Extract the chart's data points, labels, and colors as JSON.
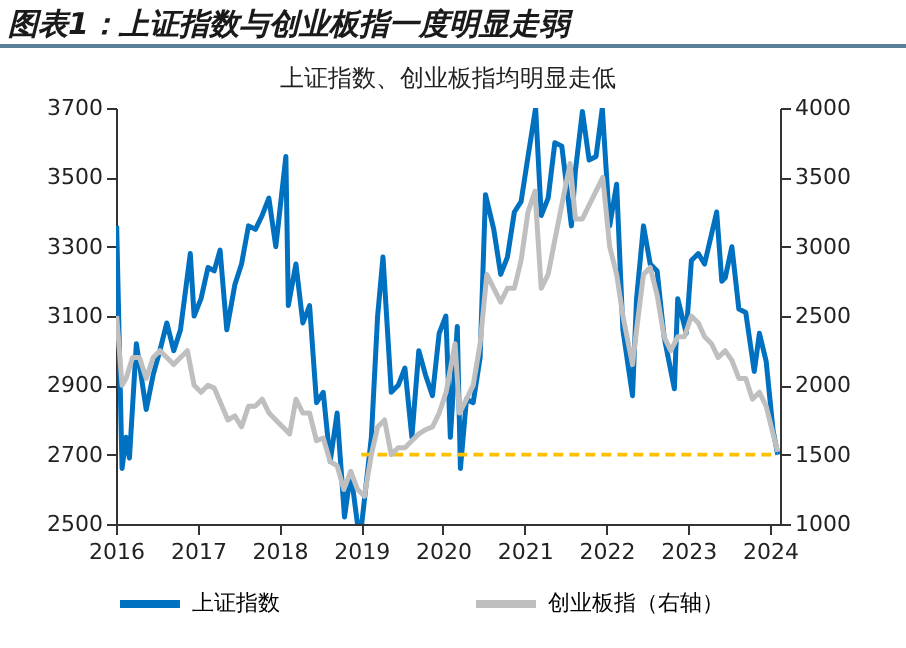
{
  "chart_data": {
    "type": "line",
    "title": "图表1：上证指数与创业板指一度明显走弱",
    "subtitle": "上证指数、创业板指均明显走低",
    "xlim": [
      "2016-01",
      "2024-02-15"
    ],
    "xticks": [
      "2016",
      "2017",
      "2018",
      "2019",
      "2020",
      "2021",
      "2022",
      "2023",
      "2024"
    ],
    "ylim": [
      2500,
      3700
    ],
    "yticks": [
      2500,
      2700,
      2900,
      3100,
      3300,
      3500,
      3700
    ],
    "y2lim": [
      1000,
      4000
    ],
    "y2ticks": [
      1000,
      1500,
      2000,
      2500,
      3000,
      3500,
      4000
    ],
    "grid": false,
    "legend": "bottom",
    "line_style": "solid",
    "series": [
      {
        "name": "上证指数",
        "color": "#0070c0",
        "x": [
          "2016-01-04",
          "2016-01-28",
          "2016-02-15",
          "2016-03-01",
          "2016-04-01",
          "2016-05-15",
          "2016-06-15",
          "2016-07-15",
          "2016-08-15",
          "2016-09-15",
          "2016-10-15",
          "2016-11-28",
          "2016-12-15",
          "2017-01-15",
          "2017-02-15",
          "2017-03-15",
          "2017-04-10",
          "2017-05-10",
          "2017-06-15",
          "2017-07-15",
          "2017-08-15",
          "2017-09-15",
          "2017-10-15",
          "2017-11-14",
          "2017-12-15",
          "2018-01-29",
          "2018-02-09",
          "2018-03-15",
          "2018-04-15",
          "2018-05-15",
          "2018-06-15",
          "2018-07-15",
          "2018-08-15",
          "2018-09-15",
          "2018-10-18",
          "2018-11-15",
          "2018-12-15",
          "2019-01-03",
          "2019-02-15",
          "2019-03-15",
          "2019-04-08",
          "2019-05-15",
          "2019-06-15",
          "2019-07-15",
          "2019-08-15",
          "2019-09-15",
          "2019-10-15",
          "2019-11-15",
          "2019-12-15",
          "2020-01-14",
          "2020-02-03",
          "2020-03-05",
          "2020-03-19",
          "2020-04-15",
          "2020-05-15",
          "2020-06-15",
          "2020-07-09",
          "2020-08-15",
          "2020-09-15",
          "2020-10-15",
          "2020-11-15",
          "2020-12-15",
          "2021-01-15",
          "2021-02-18",
          "2021-03-15",
          "2021-04-15",
          "2021-05-15",
          "2021-06-15",
          "2021-07-28",
          "2021-08-15",
          "2021-09-15",
          "2021-10-15",
          "2021-11-15",
          "2021-12-13",
          "2022-01-15",
          "2022-02-15",
          "2022-03-15",
          "2022-04-27",
          "2022-05-15",
          "2022-06-15",
          "2022-07-15",
          "2022-08-15",
          "2022-09-15",
          "2022-10-31",
          "2022-11-15",
          "2022-12-23",
          "2023-01-15",
          "2023-02-15",
          "2023-03-15",
          "2023-05-08",
          "2023-05-31",
          "2023-06-15",
          "2023-07-15",
          "2023-08-15",
          "2023-09-15",
          "2023-10-23",
          "2023-11-15",
          "2023-12-15",
          "2024-01-15",
          "2024-02-05"
        ],
        "values": [
          3360,
          2660,
          2750,
          2690,
          3020,
          2830,
          2930,
          3000,
          3080,
          3000,
          3060,
          3280,
          3100,
          3150,
          3240,
          3230,
          3290,
          3060,
          3190,
          3250,
          3360,
          3350,
          3390,
          3440,
          3300,
          3560,
          3130,
          3250,
          3080,
          3130,
          2850,
          2880,
          2680,
          2820,
          2520,
          2650,
          2500,
          2500,
          2750,
          3100,
          3270,
          2880,
          2900,
          2950,
          2750,
          3000,
          2930,
          2870,
          3050,
          3100,
          2750,
          3070,
          2660,
          2860,
          2850,
          2980,
          3450,
          3350,
          3220,
          3270,
          3400,
          3430,
          3560,
          3700,
          3390,
          3440,
          3600,
          3590,
          3360,
          3520,
          3690,
          3550,
          3560,
          3700,
          3360,
          3480,
          3060,
          2870,
          3150,
          3360,
          3250,
          3230,
          3040,
          2890,
          3150,
          3050,
          3260,
          3280,
          3250,
          3400,
          3200,
          3210,
          3300,
          3120,
          3110,
          2940,
          3050,
          2970,
          2770,
          2700
        ]
      },
      {
        "name": "创业板指（右轴）",
        "color": "#bfbfbf",
        "axis": "y2",
        "x": [
          "2016-01-04",
          "2016-01-28",
          "2016-02-15",
          "2016-03-15",
          "2016-04-15",
          "2016-05-15",
          "2016-06-15",
          "2016-07-15",
          "2016-08-15",
          "2016-09-15",
          "2016-10-15",
          "2016-11-15",
          "2016-12-15",
          "2017-01-15",
          "2017-02-15",
          "2017-03-15",
          "2017-05-15",
          "2017-06-15",
          "2017-07-15",
          "2017-08-15",
          "2017-09-15",
          "2017-10-15",
          "2017-11-15",
          "2017-12-15",
          "2018-01-15",
          "2018-02-15",
          "2018-03-15",
          "2018-04-15",
          "2018-05-15",
          "2018-06-15",
          "2018-07-15",
          "2018-08-15",
          "2018-09-15",
          "2018-10-15",
          "2018-11-15",
          "2018-12-15",
          "2019-01-15",
          "2019-02-15",
          "2019-03-15",
          "2019-04-15",
          "2019-05-15",
          "2019-06-15",
          "2019-07-15",
          "2019-08-15",
          "2019-09-15",
          "2019-10-15",
          "2019-11-15",
          "2019-12-15",
          "2020-01-15",
          "2020-02-24",
          "2020-03-15",
          "2020-04-15",
          "2020-05-15",
          "2020-06-15",
          "2020-07-15",
          "2020-08-15",
          "2020-09-15",
          "2020-10-15",
          "2020-11-15",
          "2020-12-15",
          "2021-01-15",
          "2021-02-15",
          "2021-03-15",
          "2021-04-15",
          "2021-05-15",
          "2021-06-15",
          "2021-07-22",
          "2021-08-15",
          "2021-09-15",
          "2021-10-15",
          "2021-11-15",
          "2021-12-15",
          "2022-01-15",
          "2022-02-15",
          "2022-03-15",
          "2022-04-27",
          "2022-05-15",
          "2022-06-15",
          "2022-07-15",
          "2022-08-15",
          "2022-09-15",
          "2022-10-15",
          "2022-11-15",
          "2022-12-15",
          "2023-01-15",
          "2023-02-15",
          "2023-03-15",
          "2023-04-15",
          "2023-05-15",
          "2023-06-15",
          "2023-07-15",
          "2023-08-15",
          "2023-09-15",
          "2023-10-15",
          "2023-11-15",
          "2023-12-15",
          "2024-01-15",
          "2024-02-05"
        ],
        "values": [
          2500,
          2000,
          2050,
          2200,
          2200,
          2050,
          2200,
          2250,
          2200,
          2150,
          2200,
          2250,
          2000,
          1950,
          2000,
          1980,
          1750,
          1780,
          1700,
          1850,
          1850,
          1900,
          1800,
          1750,
          1700,
          1650,
          1900,
          1800,
          1800,
          1600,
          1620,
          1450,
          1420,
          1250,
          1380,
          1250,
          1200,
          1500,
          1700,
          1750,
          1500,
          1550,
          1550,
          1600,
          1650,
          1680,
          1700,
          1800,
          1950,
          2300,
          1800,
          1900,
          2000,
          2300,
          2800,
          2700,
          2600,
          2700,
          2700,
          2900,
          3250,
          3400,
          2700,
          2800,
          3050,
          3300,
          3600,
          3200,
          3200,
          3300,
          3400,
          3500,
          3000,
          2800,
          2500,
          2150,
          2400,
          2800,
          2850,
          2650,
          2350,
          2250,
          2350,
          2350,
          2500,
          2450,
          2350,
          2300,
          2200,
          2250,
          2180,
          2050,
          2050,
          1900,
          1950,
          1850,
          1650,
          1520
        ]
      },
      {
        "color": "#ffc000",
        "line_style": "dashed",
        "x": [
          "2019-01-01",
          "2024-02-05"
        ],
        "values": [
          2700,
          2700
        ]
      }
    ]
  }
}
